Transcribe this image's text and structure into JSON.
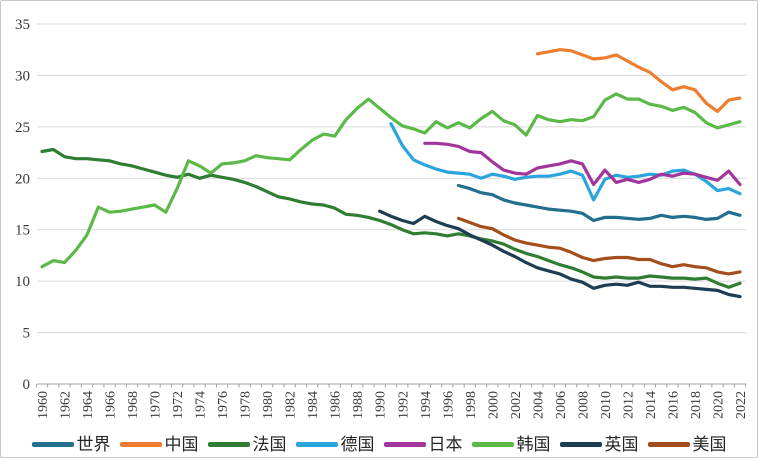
{
  "chart_data": {
    "type": "line",
    "title": "",
    "xlabel": "",
    "ylabel": "",
    "ylim": [
      0,
      35
    ],
    "y_ticks": [
      0,
      5,
      10,
      15,
      20,
      25,
      30,
      35
    ],
    "x_ticks": [
      "1960",
      "1962",
      "1964",
      "1966",
      "1968",
      "1970",
      "1972",
      "1974",
      "1976",
      "1978",
      "1980",
      "1982",
      "1984",
      "1986",
      "1988",
      "1990",
      "1992",
      "1994",
      "1996",
      "1998",
      "2000",
      "2002",
      "2004",
      "2006",
      "2008",
      "2010",
      "2012",
      "2014",
      "2016",
      "2018",
      "2020",
      "2022"
    ],
    "x_range": [
      1960,
      2022
    ],
    "grid": "horizontal",
    "gridline_color": "#d9d9d9",
    "axis_color": "#a0a0a0",
    "tick_label_color": "#3b3b3b",
    "legend_position": "bottom",
    "series": [
      {
        "name": "世界",
        "key": "world",
        "color": "#216e8d",
        "start_year": 1997,
        "values": [
          19.3,
          19.0,
          18.6,
          18.4,
          17.9,
          17.6,
          17.4,
          17.2,
          17.0,
          16.9,
          16.8,
          16.6,
          15.9,
          16.2,
          16.2,
          16.1,
          16.0,
          16.1,
          16.4,
          16.2,
          16.3,
          16.2,
          16.0,
          16.1,
          16.7,
          16.4
        ]
      },
      {
        "name": "中国",
        "key": "china",
        "color": "#ee7d30",
        "start_year": 2004,
        "values": [
          32.1,
          32.3,
          32.5,
          32.4,
          32.0,
          31.6,
          31.7,
          32.0,
          31.4,
          30.8,
          30.3,
          29.4,
          28.6,
          28.9,
          28.6,
          27.3,
          26.5,
          27.6,
          27.8
        ]
      },
      {
        "name": "法国",
        "key": "france",
        "color": "#2e7d31",
        "start_year": 1960,
        "values": [
          22.6,
          22.8,
          22.1,
          21.9,
          21.9,
          21.8,
          21.7,
          21.4,
          21.2,
          20.9,
          20.6,
          20.3,
          20.1,
          20.4,
          20.0,
          20.3,
          20.1,
          19.9,
          19.6,
          19.2,
          18.7,
          18.2,
          18.0,
          17.7,
          17.5,
          17.4,
          17.1,
          16.5,
          16.4,
          16.2,
          15.9,
          15.5,
          15.0,
          14.6,
          14.7,
          14.6,
          14.4,
          14.6,
          14.4,
          14.1,
          13.9,
          13.6,
          13.1,
          12.7,
          12.4,
          12.0,
          11.6,
          11.3,
          10.9,
          10.4,
          10.3,
          10.4,
          10.3,
          10.3,
          10.5,
          10.4,
          10.3,
          10.3,
          10.2,
          10.3,
          9.8,
          9.4,
          9.8
        ]
      },
      {
        "name": "德国",
        "key": "germany",
        "color": "#29a4dc",
        "start_year": 1991,
        "values": [
          25.3,
          23.2,
          21.8,
          21.3,
          20.9,
          20.6,
          20.5,
          20.4,
          20.0,
          20.4,
          20.2,
          19.9,
          20.1,
          20.2,
          20.2,
          20.4,
          20.7,
          20.3,
          17.9,
          19.9,
          20.3,
          20.1,
          20.2,
          20.4,
          20.3,
          20.7,
          20.8,
          20.4,
          19.7,
          18.8,
          19.0,
          18.5
        ]
      },
      {
        "name": "日本",
        "key": "japan",
        "color": "#a2359c",
        "start_year": 1994,
        "values": [
          23.4,
          23.4,
          23.3,
          23.1,
          22.6,
          22.5,
          21.6,
          20.8,
          20.5,
          20.4,
          21.0,
          21.2,
          21.4,
          21.7,
          21.4,
          19.4,
          20.8,
          19.6,
          19.9,
          19.6,
          19.9,
          20.4,
          20.2,
          20.5,
          20.4,
          20.1,
          19.8,
          20.7,
          19.4
        ]
      },
      {
        "name": "韩国",
        "key": "korea",
        "color": "#5bb948",
        "start_year": 1960,
        "values": [
          11.4,
          12.0,
          11.8,
          13.0,
          14.5,
          17.2,
          16.7,
          16.8,
          17.0,
          17.2,
          17.4,
          16.7,
          19.0,
          21.7,
          21.2,
          20.5,
          21.4,
          21.5,
          21.7,
          22.2,
          22.0,
          21.9,
          21.8,
          22.8,
          23.7,
          24.3,
          24.1,
          25.7,
          26.8,
          27.7,
          26.8,
          25.9,
          25.1,
          24.8,
          24.4,
          25.5,
          24.9,
          25.4,
          24.9,
          25.8,
          26.5,
          25.6,
          25.2,
          24.2,
          26.1,
          25.7,
          25.5,
          25.7,
          25.6,
          26.0,
          27.6,
          28.2,
          27.7,
          27.7,
          27.2,
          27.0,
          26.6,
          26.9,
          26.4,
          25.4,
          24.9,
          25.2,
          25.5
        ]
      },
      {
        "name": "英国",
        "key": "uk",
        "color": "#1e3c52",
        "start_year": 1990,
        "values": [
          16.8,
          16.3,
          15.9,
          15.6,
          16.3,
          15.8,
          15.4,
          15.1,
          14.5,
          14.0,
          13.5,
          12.9,
          12.4,
          11.8,
          11.3,
          11.0,
          10.7,
          10.2,
          9.9,
          9.3,
          9.6,
          9.7,
          9.6,
          9.9,
          9.5,
          9.5,
          9.4,
          9.4,
          9.3,
          9.2,
          9.1,
          8.7,
          8.5
        ]
      },
      {
        "name": "美国",
        "key": "usa",
        "color": "#a34e1c",
        "start_year": 1997,
        "values": [
          16.1,
          15.7,
          15.3,
          15.1,
          14.5,
          14.0,
          13.7,
          13.5,
          13.3,
          13.2,
          12.8,
          12.3,
          12.0,
          12.2,
          12.3,
          12.3,
          12.1,
          12.1,
          11.7,
          11.4,
          11.6,
          11.4,
          11.3,
          10.9,
          10.7,
          10.9
        ]
      }
    ]
  }
}
